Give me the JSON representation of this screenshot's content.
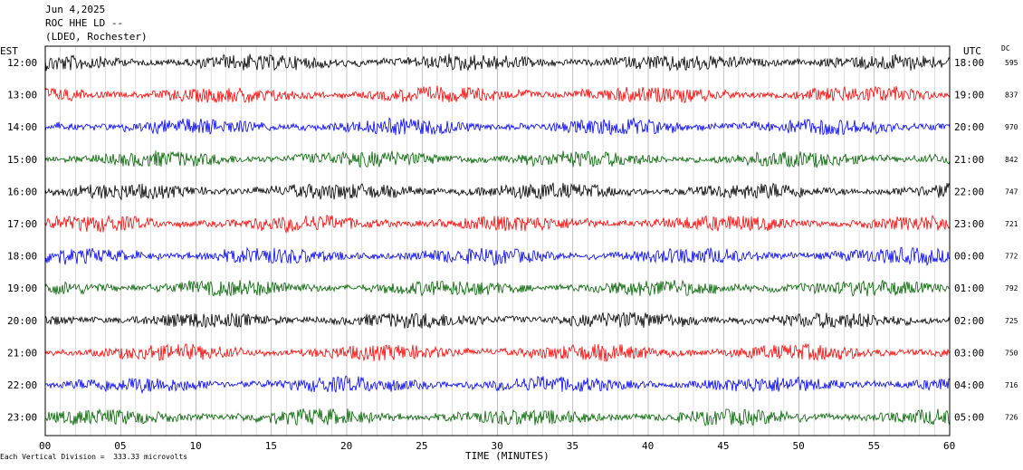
{
  "header": {
    "date": "Jun 4,2025",
    "station": "ROC HHE LD --",
    "network": "(LDEO, Rochester)"
  },
  "chart_data": {
    "type": "line",
    "title": "",
    "left_axis_label": "EST",
    "right_axis_label": "UTC",
    "dc_label": "DC",
    "xlabel": "TIME (MINUTES)",
    "xlim": [
      0,
      60
    ],
    "x_ticks": [
      "00",
      "05",
      "10",
      "15",
      "20",
      "25",
      "30",
      "35",
      "40",
      "45",
      "50",
      "55",
      "60"
    ],
    "x_tick_values": [
      0,
      5,
      10,
      15,
      20,
      25,
      30,
      35,
      40,
      45,
      50,
      55,
      60
    ],
    "grid": "vertical lines every minute",
    "trace_colors": [
      "#000000",
      "#ff0000",
      "#0000ff",
      "#006400"
    ],
    "rows": [
      {
        "est": "12:00",
        "utc": "18:00",
        "dc": "595"
      },
      {
        "est": "13:00",
        "utc": "19:00",
        "dc": "837"
      },
      {
        "est": "14:00",
        "utc": "20:00",
        "dc": "970"
      },
      {
        "est": "15:00",
        "utc": "21:00",
        "dc": "842"
      },
      {
        "est": "16:00",
        "utc": "22:00",
        "dc": "747"
      },
      {
        "est": "17:00",
        "utc": "23:00",
        "dc": "721"
      },
      {
        "est": "18:00",
        "utc": "00:00",
        "dc": "772"
      },
      {
        "est": "19:00",
        "utc": "01:00",
        "dc": "792"
      },
      {
        "est": "20:00",
        "utc": "02:00",
        "dc": "725"
      },
      {
        "est": "21:00",
        "utc": "03:00",
        "dc": "750"
      },
      {
        "est": "22:00",
        "utc": "04:00",
        "dc": "716"
      },
      {
        "est": "23:00",
        "utc": "05:00",
        "dc": "726"
      }
    ],
    "scale_note": "Each Vertical Division =  333.33 microvolts"
  }
}
